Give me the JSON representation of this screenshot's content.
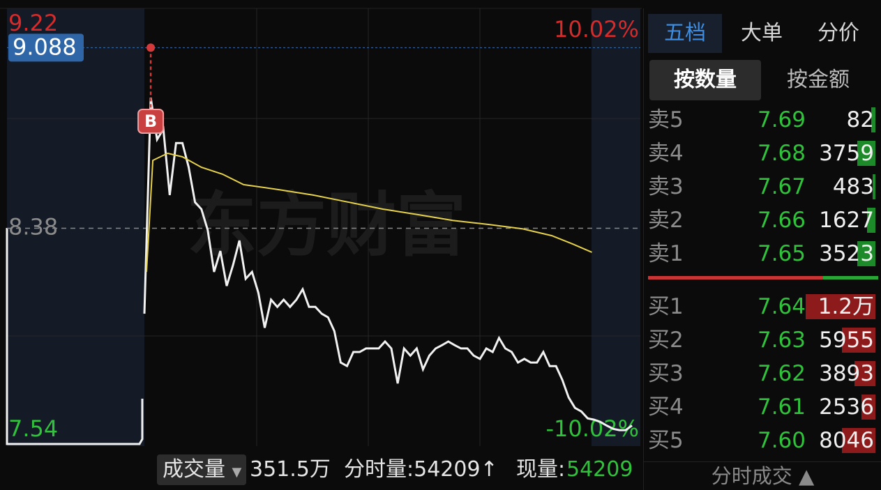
{
  "chart_data": {
    "type": "line",
    "watermark": "东方财富",
    "marker": "B",
    "crosshair": {
      "value": 9.088
    },
    "xlim": [
      0,
      231
    ],
    "ylim": [
      7.54,
      9.22
    ],
    "yticks": [
      9.22,
      8.38,
      7.54
    ],
    "y2lim": [
      -10.02,
      10.02
    ],
    "y2ticks": [
      {
        "value": 10.02,
        "label": "10.02%"
      },
      {
        "value": -10.02,
        "label": "-10.02%"
      }
    ],
    "series": [
      {
        "color": "#f2f2f2",
        "x": [
          0,
          3,
          6,
          9,
          12,
          15,
          18,
          21,
          24,
          27,
          30,
          33,
          36,
          39,
          42,
          45,
          48,
          51,
          54,
          57,
          60,
          63,
          66,
          69,
          72,
          75,
          78,
          81,
          84,
          87,
          90,
          93,
          96,
          99,
          102,
          105,
          108,
          111,
          114,
          117,
          120,
          123,
          126,
          129,
          132,
          135,
          138,
          141,
          144,
          147,
          150,
          153,
          156,
          159,
          162,
          165,
          168,
          171,
          174,
          177,
          180,
          183,
          186,
          189,
          192,
          195,
          198,
          201,
          204,
          207,
          210,
          213,
          216,
          219,
          222,
          225,
          228,
          231
        ],
        "values": [
          8.045,
          8.892,
          8.728,
          8.769,
          8.51,
          8.714,
          8.714,
          8.619,
          8.482,
          8.455,
          8.373,
          8.209,
          8.291,
          8.154,
          8.236,
          8.332,
          8.182,
          8.209,
          8.127,
          7.99,
          8.1,
          8.072,
          8.1,
          8.072,
          8.1,
          8.141,
          8.072,
          8.072,
          8.045,
          8.031,
          7.977,
          7.854,
          7.84,
          7.895,
          7.895,
          7.909,
          7.909,
          7.909,
          7.936,
          7.909,
          7.772,
          7.909,
          7.881,
          7.909,
          7.827,
          7.881,
          7.909,
          7.922,
          7.936,
          7.922,
          7.909,
          7.909,
          7.881,
          7.868,
          7.909,
          7.895,
          7.95,
          7.909,
          7.895,
          7.854,
          7.868,
          7.854,
          7.854,
          7.895,
          7.84,
          7.84,
          7.786,
          7.717,
          7.676,
          7.662,
          7.635,
          7.63,
          7.621,
          7.607,
          7.594,
          7.589,
          7.589,
          7.607
        ]
      },
      {
        "color": "#e6d24a",
        "x": [
          1,
          4,
          11,
          18,
          27,
          37,
          47,
          64,
          80,
          97,
          113,
          130,
          146,
          163,
          179,
          193,
          203,
          212
        ],
        "values": [
          8.209,
          8.646,
          8.674,
          8.66,
          8.619,
          8.592,
          8.551,
          8.531,
          8.51,
          8.482,
          8.455,
          8.433,
          8.411,
          8.395,
          8.378,
          8.351,
          8.318,
          8.286
        ]
      }
    ]
  },
  "volume_bar": {
    "button": "成交量",
    "total": "351.5万",
    "fenshi": "分时量:54209↑",
    "current_label": "现量:",
    "current_value": "54209"
  },
  "order_book": {
    "tabs": [
      "五档",
      "大单",
      "分价"
    ],
    "subtabs": [
      "按数量",
      "按金额"
    ],
    "sell": [
      {
        "label": "卖5",
        "price": "7.69",
        "volume": "82"
      },
      {
        "label": "卖4",
        "price": "7.68",
        "volume": "3759"
      },
      {
        "label": "卖3",
        "price": "7.67",
        "volume": "483"
      },
      {
        "label": "卖2",
        "price": "7.66",
        "volume": "1627"
      },
      {
        "label": "卖1",
        "price": "7.65",
        "volume": "3523"
      }
    ],
    "buy": [
      {
        "label": "买1",
        "price": "7.64",
        "volume": "1.2万"
      },
      {
        "label": "买2",
        "price": "7.63",
        "volume": "5955"
      },
      {
        "label": "买3",
        "price": "7.62",
        "volume": "3893"
      },
      {
        "label": "买4",
        "price": "7.61",
        "volume": "2536"
      },
      {
        "label": "买5",
        "price": "7.60",
        "volume": "8046"
      }
    ],
    "footer": "分时成交 ▲"
  }
}
